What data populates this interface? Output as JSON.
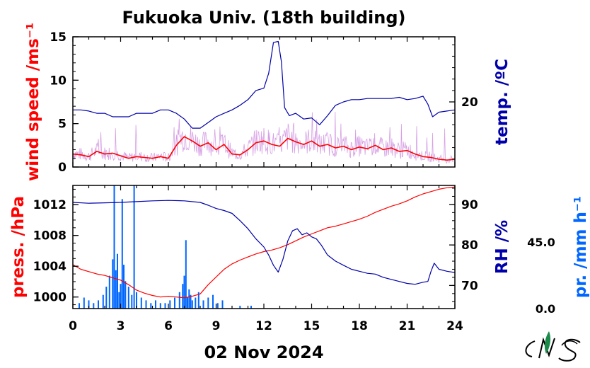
{
  "title": "Fukuoka Univ. (18th building)",
  "date_label": "02 Nov 2024",
  "colors": {
    "wind_avg": "#ff0000",
    "wind_raw": "#cc88dd",
    "temperature": "#0000aa",
    "pressure": "#ff0000",
    "rh": "#0000aa",
    "precip": "#0066ff",
    "axis": "#000000"
  },
  "chart_data": [
    {
      "type": "line",
      "panel": "top",
      "xlabel": "",
      "left_axis": {
        "label": "wind speed /ms⁻¹",
        "ylim": [
          0,
          15
        ],
        "ticks": [
          "0",
          "5",
          "10",
          "15"
        ]
      },
      "right_axis": {
        "label": "temp. /ºC",
        "ticks": [
          "20"
        ],
        "ylim": [
          14.3,
          25.7
        ]
      },
      "xlim": [
        0,
        24
      ],
      "series": [
        {
          "name": "",
          "axis": "left",
          "x": [
            0,
            0.5,
            1,
            1.5,
            2,
            2.5,
            3,
            3.5,
            4,
            4.5,
            5,
            5.5,
            6,
            6.5,
            7,
            7.5,
            8,
            8.5,
            9,
            9.5,
            10,
            10.5,
            11,
            11.5,
            12,
            12.5,
            13,
            13.5,
            14,
            14.5,
            15,
            15.5,
            16,
            16.5,
            17,
            17.5,
            18,
            18.5,
            19,
            19.5,
            20,
            20.5,
            21,
            21.5,
            22,
            22.5,
            23,
            23.5,
            24
          ],
          "values": [
            1.5,
            1.4,
            1.2,
            1.8,
            1.5,
            1.6,
            1.3,
            1.0,
            1.2,
            1.1,
            1.0,
            1.2,
            1.0,
            2.5,
            3.5,
            3.0,
            2.4,
            2.8,
            2.0,
            2.6,
            1.5,
            1.4,
            2.0,
            2.8,
            3.0,
            2.6,
            2.4,
            3.3,
            2.9,
            2.6,
            3.0,
            2.4,
            2.6,
            2.2,
            2.4,
            2.0,
            2.3,
            2.1,
            2.5,
            2.0,
            2.2,
            1.8,
            1.9,
            1.5,
            1.2,
            1.1,
            0.9,
            0.8,
            0.9
          ]
        },
        {
          "name": "",
          "axis": "right",
          "x": [
            0,
            0.5,
            1,
            1.5,
            2,
            2.5,
            3,
            3.5,
            4,
            4.5,
            5,
            5.5,
            6,
            6.5,
            7,
            7.5,
            8,
            8.5,
            9,
            9.5,
            10,
            10.5,
            11,
            11.5,
            12,
            12.3,
            12.6,
            12.9,
            13.1,
            13.3,
            13.6,
            14,
            14.5,
            15,
            15.5,
            16,
            16.5,
            17,
            17.5,
            18,
            18.5,
            19,
            19.5,
            20,
            20.5,
            21,
            21.5,
            22,
            22.3,
            22.6,
            23,
            23.5,
            24
          ],
          "values": [
            19.3,
            19.3,
            19.2,
            19.0,
            19.0,
            18.7,
            18.7,
            18.7,
            19.0,
            19.0,
            19.0,
            19.3,
            19.3,
            19.0,
            18.5,
            17.7,
            17.7,
            18.2,
            18.7,
            19.0,
            19.3,
            19.7,
            20.2,
            21.0,
            21.2,
            22.5,
            25.2,
            25.3,
            23.5,
            19.5,
            18.8,
            19.0,
            18.5,
            18.6,
            18.0,
            18.8,
            19.7,
            20.0,
            20.2,
            20.2,
            20.3,
            20.3,
            20.3,
            20.3,
            20.4,
            20.2,
            20.3,
            20.5,
            19.8,
            18.7,
            19.1,
            19.2,
            19.3
          ]
        }
      ]
    },
    {
      "type": "line",
      "panel": "bottom",
      "xlabel": "02 Nov 2024",
      "xlim": [
        0,
        24
      ],
      "xticks": [
        "0",
        "3",
        "6",
        "9",
        "12",
        "15",
        "18",
        "21",
        "24"
      ],
      "left_axis": {
        "label": "press. /hPa",
        "ylim": [
          998.5,
          1014.5
        ],
        "ticks": [
          "1000",
          "1004",
          "1008",
          "1012"
        ]
      },
      "right_axis": {
        "label": "RH /%",
        "ylim": [
          64.3,
          94.7
        ],
        "ticks": [
          "70",
          "80",
          "90"
        ]
      },
      "precip_axis": {
        "label": "pr. /mm h⁻¹",
        "min_label": "0.0",
        "max_label": "45.0",
        "ylim": [
          0,
          45
        ]
      },
      "series": [
        {
          "name": "",
          "axis": "left",
          "x": [
            0,
            0.5,
            1,
            1.5,
            2,
            2.5,
            3,
            3.5,
            4,
            4.5,
            5,
            5.5,
            6,
            6.5,
            7,
            7.5,
            8,
            8.5,
            9,
            9.5,
            10,
            10.5,
            11,
            11.5,
            12,
            12.5,
            13,
            13.5,
            14,
            14.5,
            15,
            15.5,
            16,
            16.5,
            17,
            17.5,
            18,
            18.5,
            19,
            19.5,
            20,
            20.5,
            21,
            21.5,
            22,
            22.5,
            23,
            23.5,
            24
          ],
          "values": [
            1004.2,
            1003.6,
            1003.3,
            1003.0,
            1002.8,
            1002.5,
            1002.2,
            1001.6,
            1000.9,
            1000.5,
            1000.2,
            1000.0,
            1000.1,
            1000.0,
            999.9,
            1000.1,
            1000.4,
            1001.6,
            1002.6,
            1003.6,
            1004.3,
            1004.8,
            1005.2,
            1005.6,
            1005.9,
            1006.1,
            1006.4,
            1006.8,
            1007.3,
            1007.8,
            1008.2,
            1008.6,
            1009.0,
            1009.2,
            1009.5,
            1009.8,
            1010.1,
            1010.5,
            1011.0,
            1011.4,
            1011.8,
            1012.1,
            1012.5,
            1013.0,
            1013.4,
            1013.7,
            1014.0,
            1014.2,
            1014.3
          ]
        },
        {
          "name": "",
          "axis": "right",
          "x": [
            0,
            1,
            2,
            3,
            4,
            5,
            6,
            7,
            8,
            8.5,
            9,
            9.5,
            10,
            10.5,
            11,
            11.5,
            12,
            12.3,
            12.6,
            12.9,
            13.2,
            13.5,
            13.8,
            14.1,
            14.4,
            14.7,
            15,
            15.3,
            15.6,
            16,
            16.5,
            17,
            17.5,
            18,
            18.5,
            19,
            19.5,
            20,
            20.5,
            21,
            21.5,
            22,
            22.3,
            22.5,
            22.7,
            23,
            23.5,
            24
          ],
          "values": [
            90.5,
            90.3,
            90.4,
            90.5,
            90.7,
            90.9,
            91.0,
            90.9,
            90.5,
            89.8,
            89.0,
            88.5,
            87.8,
            86.0,
            84.0,
            81.5,
            79.5,
            77.5,
            75.0,
            73.3,
            76.5,
            81.0,
            83.5,
            84.0,
            82.5,
            83.0,
            82.0,
            81.5,
            80.0,
            77.5,
            76.0,
            75.0,
            74.0,
            73.5,
            73.0,
            72.8,
            72.0,
            71.5,
            71.0,
            70.5,
            70.3,
            70.8,
            71.0,
            73.5,
            75.5,
            74.0,
            73.5,
            73.2
          ]
        },
        {
          "name": "",
          "axis": "precip",
          "type": "bar",
          "x": [
            0.4,
            0.7,
            1.0,
            1.3,
            1.6,
            1.9,
            2.1,
            2.3,
            2.5,
            2.6,
            2.7,
            2.8,
            2.9,
            3.0,
            3.1,
            3.2,
            3.3,
            3.5,
            3.7,
            3.85,
            4.0,
            4.3,
            4.6,
            4.9,
            5.2,
            5.5,
            5.8,
            6.1,
            6.4,
            6.7,
            6.9,
            7.0,
            7.1,
            7.2,
            7.3,
            7.4,
            7.5,
            7.7,
            7.9,
            8.2,
            8.5,
            8.8,
            9.1,
            9.4,
            10.5,
            11.2
          ],
          "values": [
            2,
            4,
            3,
            2,
            3,
            5,
            8,
            12,
            18,
            45,
            14,
            20,
            6,
            9,
            40,
            16,
            10,
            8,
            5,
            45,
            6,
            4,
            3,
            2,
            3,
            2,
            2,
            3,
            4,
            6,
            9,
            12,
            25,
            4,
            7,
            5,
            3,
            4,
            6,
            3,
            4,
            5,
            2,
            3,
            1,
            1
          ]
        }
      ]
    }
  ]
}
